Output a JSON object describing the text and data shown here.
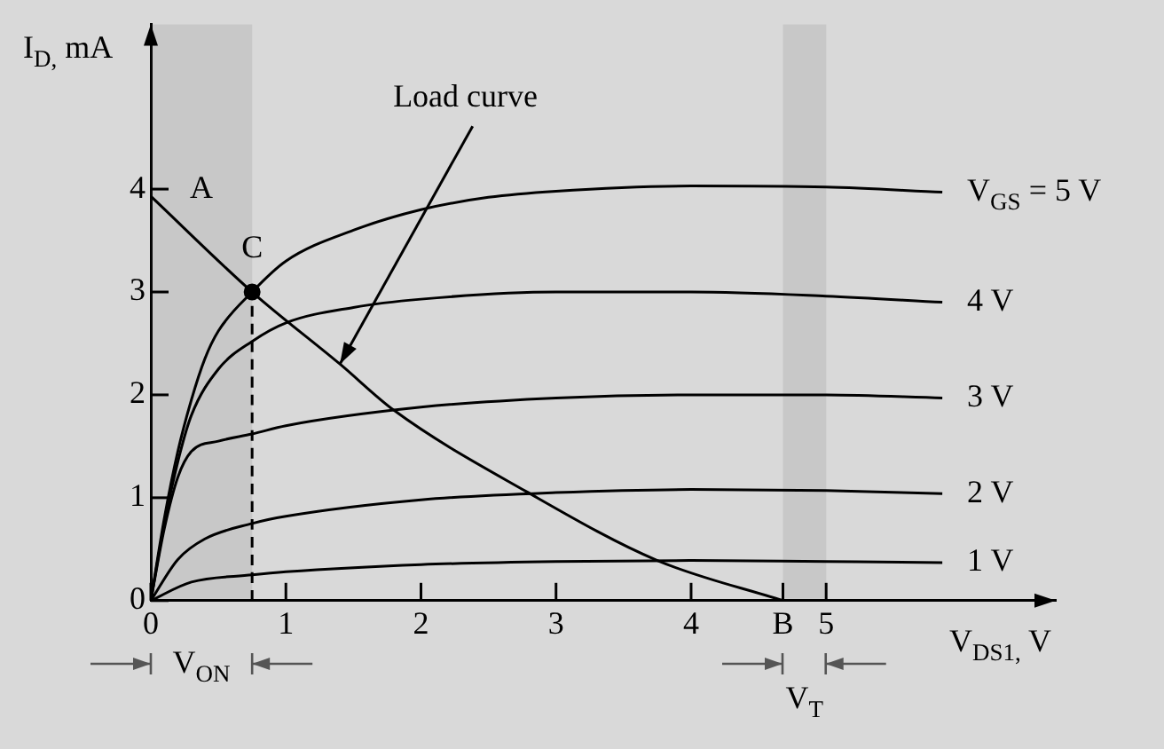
{
  "chart_data": {
    "type": "line",
    "xlabel": "V$_{DS1,}$ V",
    "ylabel": "I$_{D,}$ mA",
    "xlim": [
      0,
      6.7
    ],
    "ylim": [
      0,
      5.6
    ],
    "xticks": [
      0,
      1,
      2,
      3,
      4,
      {
        "value": 4.68,
        "label": "B"
      },
      5
    ],
    "yticks": [
      0,
      1,
      2,
      3,
      4
    ],
    "grid": false,
    "legend": "bottom left",
    "marker": "none",
    "line_style": "solid",
    "series": [
      {
        "name": "V$_{GS}$ = 5 V",
        "color": "#000000",
        "x": [
          0,
          0.1,
          0.2,
          0.3,
          0.4,
          0.5,
          0.75,
          1,
          1.5,
          2,
          2.5,
          3,
          4,
          5,
          5.86
        ],
        "values": [
          0,
          0.8,
          1.45,
          1.95,
          2.35,
          2.62,
          3.0,
          3.3,
          3.6,
          3.8,
          3.92,
          3.98,
          4.03,
          4.02,
          3.97
        ]
      },
      {
        "name": "4 V",
        "color": "#000000",
        "x": [
          0,
          0.1,
          0.2,
          0.3,
          0.5,
          0.75,
          1,
          1.5,
          2,
          3,
          4,
          5,
          5.86
        ],
        "values": [
          0,
          0.75,
          1.35,
          1.8,
          2.25,
          2.52,
          2.7,
          2.85,
          2.93,
          3.0,
          3.0,
          2.96,
          2.9
        ]
      },
      {
        "name": "3 V",
        "color": "#000000",
        "x": [
          0,
          0.1,
          0.2,
          0.3,
          0.5,
          0.75,
          1,
          2,
          3,
          4,
          5,
          5.86
        ],
        "values": [
          0,
          0.7,
          1.2,
          1.45,
          1.55,
          1.62,
          1.7,
          1.88,
          1.97,
          2.0,
          2.0,
          1.97
        ]
      },
      {
        "name": "2 V",
        "color": "#000000",
        "x": [
          0,
          0.2,
          0.4,
          0.75,
          1,
          2,
          3,
          4,
          5,
          5.86
        ],
        "values": [
          0,
          0.4,
          0.6,
          0.75,
          0.82,
          0.98,
          1.05,
          1.08,
          1.07,
          1.04
        ]
      },
      {
        "name": "1 V",
        "color": "#000000",
        "x": [
          0,
          0.3,
          0.75,
          1,
          2,
          3,
          4,
          5,
          5.86
        ],
        "values": [
          0,
          0.18,
          0.25,
          0.28,
          0.35,
          0.38,
          0.39,
          0.38,
          0.37
        ]
      },
      {
        "color": "#000000",
        "x": [
          0,
          0.75,
          1.4,
          1.8,
          2.78,
          3.75,
          4.68
        ],
        "values": [
          3.93,
          3.0,
          2.3,
          1.85,
          1.06,
          0.39,
          0
        ]
      },
      {
        "type": "line",
        "line_style": "dashed",
        "color": "#000000",
        "x": [
          0.75,
          0.75
        ],
        "values": [
          0,
          3.0
        ]
      },
      {
        "type": "scatter",
        "marker": "circle",
        "color": "#000000",
        "x": [
          0.75
        ],
        "values": [
          3.0
        ]
      }
    ],
    "annotations": [
      {
        "text": "A",
        "x": 0,
        "y": 3.93
      },
      {
        "text": "C",
        "x": 0.75,
        "y": 3.0
      },
      {
        "text": "Load curve",
        "x": 1.4,
        "y": 2.3
      }
    ],
    "bands": [
      {
        "axis": "x",
        "from": 0,
        "to": 0.75,
        "label": "V$_{ON}$",
        "color": "#555555"
      },
      {
        "axis": "x",
        "from": 4.68,
        "to": 5,
        "label": "V$_{T}$",
        "color": "#555555"
      }
    ]
  }
}
